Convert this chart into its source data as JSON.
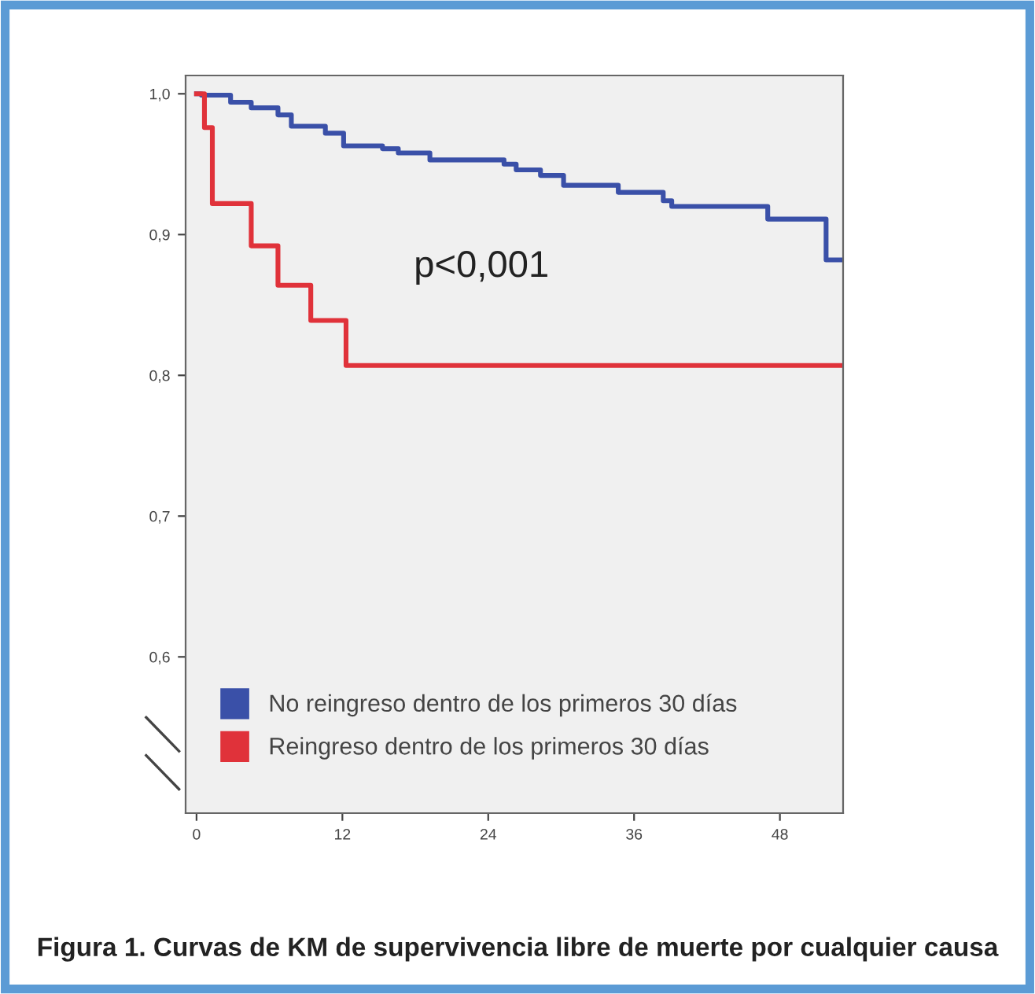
{
  "chart_data": {
    "type": "step",
    "series": [
      {
        "name": "No reingreso dentro de los primeros 30 días",
        "color": "#3a50a8",
        "x": [
          0,
          0.4,
          2.8,
          4.5,
          6.7,
          7.8,
          10.6,
          12.1,
          15.3,
          16.6,
          19.2,
          25.3,
          26.3,
          28.3,
          30.2,
          34.7,
          38.4,
          39.1,
          47.0,
          51.8,
          53.2
        ],
        "values": [
          1.0,
          0.999,
          0.994,
          0.99,
          0.985,
          0.977,
          0.972,
          0.963,
          0.961,
          0.958,
          0.953,
          0.95,
          0.946,
          0.942,
          0.935,
          0.93,
          0.924,
          0.92,
          0.911,
          0.882,
          0.882
        ]
      },
      {
        "name": "Reingreso dentro de los primeros 30 días",
        "color": "#e0323a",
        "x": [
          0,
          0.65,
          1.3,
          4.5,
          6.7,
          9.4,
          12.3,
          53.2
        ],
        "values": [
          1.0,
          0.976,
          0.922,
          0.892,
          0.864,
          0.839,
          0.807,
          0.807
        ]
      }
    ],
    "xlim": [
      -0.9,
      53.2
    ],
    "ylim": [
      0.489,
      1.013
    ],
    "xticks": [
      0,
      12,
      24,
      36,
      48
    ],
    "yticks": [
      {
        "value": 0.6,
        "label": "0,6"
      },
      {
        "value": 0.7,
        "label": "0,7"
      },
      {
        "value": 0.8,
        "label": "0,8"
      },
      {
        "value": 0.9,
        "label": "0,9"
      },
      {
        "value": 1.0,
        "label": "1,0"
      }
    ],
    "annotations": [
      "p<0,001",
      "Figura 1. Curvas de KM de supervivencia libre de muerte por cualquier causa"
    ],
    "legend": "bottom left",
    "grid": false
  }
}
